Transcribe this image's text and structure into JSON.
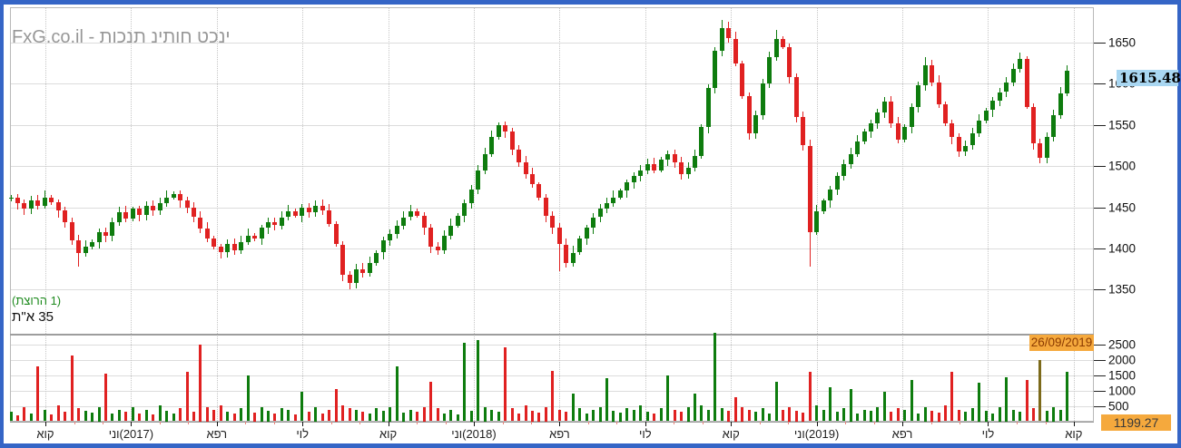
{
  "window": {
    "border_color": "#3565c6",
    "background": "#ffffff"
  },
  "watermark": {
    "text": "FxG.co.il - תוכנת ניתוח טכני"
  },
  "labels": {
    "config": "(תצורה 1)",
    "symbol": "ת\"א 35"
  },
  "price_label": {
    "value": "1615.48",
    "bg": "#a9d7f2"
  },
  "date_label": {
    "value": "26/09/2019",
    "bg": "#f5a93d"
  },
  "volume_label": {
    "value": "1199.27",
    "bg": "#f5a93d"
  },
  "axes": {
    "price_ticks": [
      1650,
      1600,
      1550,
      1500,
      1450,
      1400,
      1350
    ],
    "volume_ticks": [
      2500,
      2000,
      1500,
      1000,
      500
    ],
    "x_labels": [
      "אוק",
      "ינו(2017)",
      "אפר",
      "יול",
      "אוק",
      "ינו(2018)",
      "אפר",
      "יול",
      "אוק",
      "ינו(2019)",
      "אפר",
      "יול",
      "אוק"
    ]
  },
  "chart_data": {
    "type": "candlestick_with_volume",
    "symbol": "ת\"א 35",
    "period": "weekly, Oct 2016 - Sep 2019",
    "selected_date": "26/09/2019",
    "last_close": 1615.48,
    "price_axis_range": [
      1300,
      1690
    ],
    "volume_axis_range": [
      0,
      2900
    ],
    "up_color": "#0e7c0e",
    "down_color": "#e02121",
    "volume_highlight_color": "#7c6a1a",
    "closes": [
      1462,
      1455,
      1448,
      1458,
      1452,
      1462,
      1456,
      1446,
      1432,
      1410,
      1394,
      1402,
      1408,
      1420,
      1415,
      1432,
      1444,
      1436,
      1448,
      1441,
      1452,
      1446,
      1455,
      1462,
      1466,
      1458,
      1450,
      1438,
      1424,
      1412,
      1402,
      1396,
      1406,
      1398,
      1408,
      1416,
      1412,
      1425,
      1432,
      1428,
      1438,
      1445,
      1440,
      1450,
      1444,
      1452,
      1446,
      1430,
      1405,
      1368,
      1358,
      1375,
      1370,
      1382,
      1395,
      1410,
      1418,
      1428,
      1438,
      1445,
      1440,
      1425,
      1402,
      1398,
      1415,
      1428,
      1440,
      1455,
      1472,
      1495,
      1515,
      1535,
      1550,
      1542,
      1520,
      1505,
      1490,
      1478,
      1462,
      1440,
      1425,
      1405,
      1382,
      1395,
      1412,
      1425,
      1438,
      1448,
      1455,
      1462,
      1470,
      1480,
      1488,
      1495,
      1502,
      1495,
      1508,
      1515,
      1505,
      1490,
      1498,
      1512,
      1548,
      1595,
      1640,
      1668,
      1655,
      1625,
      1585,
      1540,
      1562,
      1600,
      1632,
      1655,
      1645,
      1608,
      1560,
      1525,
      1420,
      1445,
      1458,
      1472,
      1488,
      1502,
      1515,
      1530,
      1542,
      1552,
      1565,
      1578,
      1552,
      1532,
      1548,
      1572,
      1598,
      1622,
      1602,
      1575,
      1552,
      1535,
      1518,
      1525,
      1540,
      1555,
      1568,
      1580,
      1590,
      1602,
      1618,
      1630,
      1572,
      1528,
      1510,
      1535,
      1562,
      1588,
      1615.48
    ],
    "volumes": [
      320,
      180,
      450,
      260,
      1800,
      380,
      220,
      520,
      300,
      2150,
      420,
      350,
      280,
      460,
      1550,
      240,
      380,
      300,
      450,
      260,
      380,
      220,
      520,
      340,
      260,
      420,
      1600,
      300,
      2500,
      460,
      380,
      520,
      300,
      240,
      420,
      1500,
      280,
      460,
      340,
      260,
      420,
      380,
      220,
      950,
      300,
      460,
      260,
      380,
      1050,
      520,
      440,
      380,
      300,
      260,
      420,
      340,
      460,
      1800,
      280,
      380,
      300,
      460,
      1300,
      420,
      260,
      380,
      220,
      2550,
      340,
      2650,
      460,
      380,
      300,
      2400,
      420,
      260,
      520,
      340,
      280,
      460,
      1650,
      380,
      300,
      900,
      420,
      260,
      380,
      460,
      1400,
      340,
      280,
      420,
      360,
      520,
      300,
      260,
      420,
      1500,
      380,
      300,
      460,
      900,
      520,
      380,
      2880,
      420,
      340,
      800,
      460,
      380,
      300,
      420,
      260,
      1300,
      380,
      460,
      340,
      280,
      1600,
      520,
      380,
      1100,
      300,
      420,
      1050,
      260,
      380,
      340,
      460,
      950,
      300,
      420,
      380,
      1350,
      260,
      460,
      340,
      280,
      520,
      1600,
      380,
      300,
      420,
      1250,
      340,
      260,
      460,
      1450,
      380,
      300,
      1350,
      420,
      2000,
      340,
      460,
      380,
      1600
    ],
    "long_wicks": [
      {
        "i": 10,
        "low": 1378
      },
      {
        "i": 50,
        "low": 1350
      },
      {
        "i": 81,
        "low": 1372
      },
      {
        "i": 105,
        "high": 1678
      },
      {
        "i": 113,
        "high": 1665
      },
      {
        "i": 118,
        "low": 1378
      },
      {
        "i": 135,
        "high": 1632
      },
      {
        "i": 149,
        "high": 1638
      },
      {
        "i": 156,
        "high": 1622
      }
    ],
    "volume_color_overrides": {
      "152": "#7c6a1a"
    }
  }
}
